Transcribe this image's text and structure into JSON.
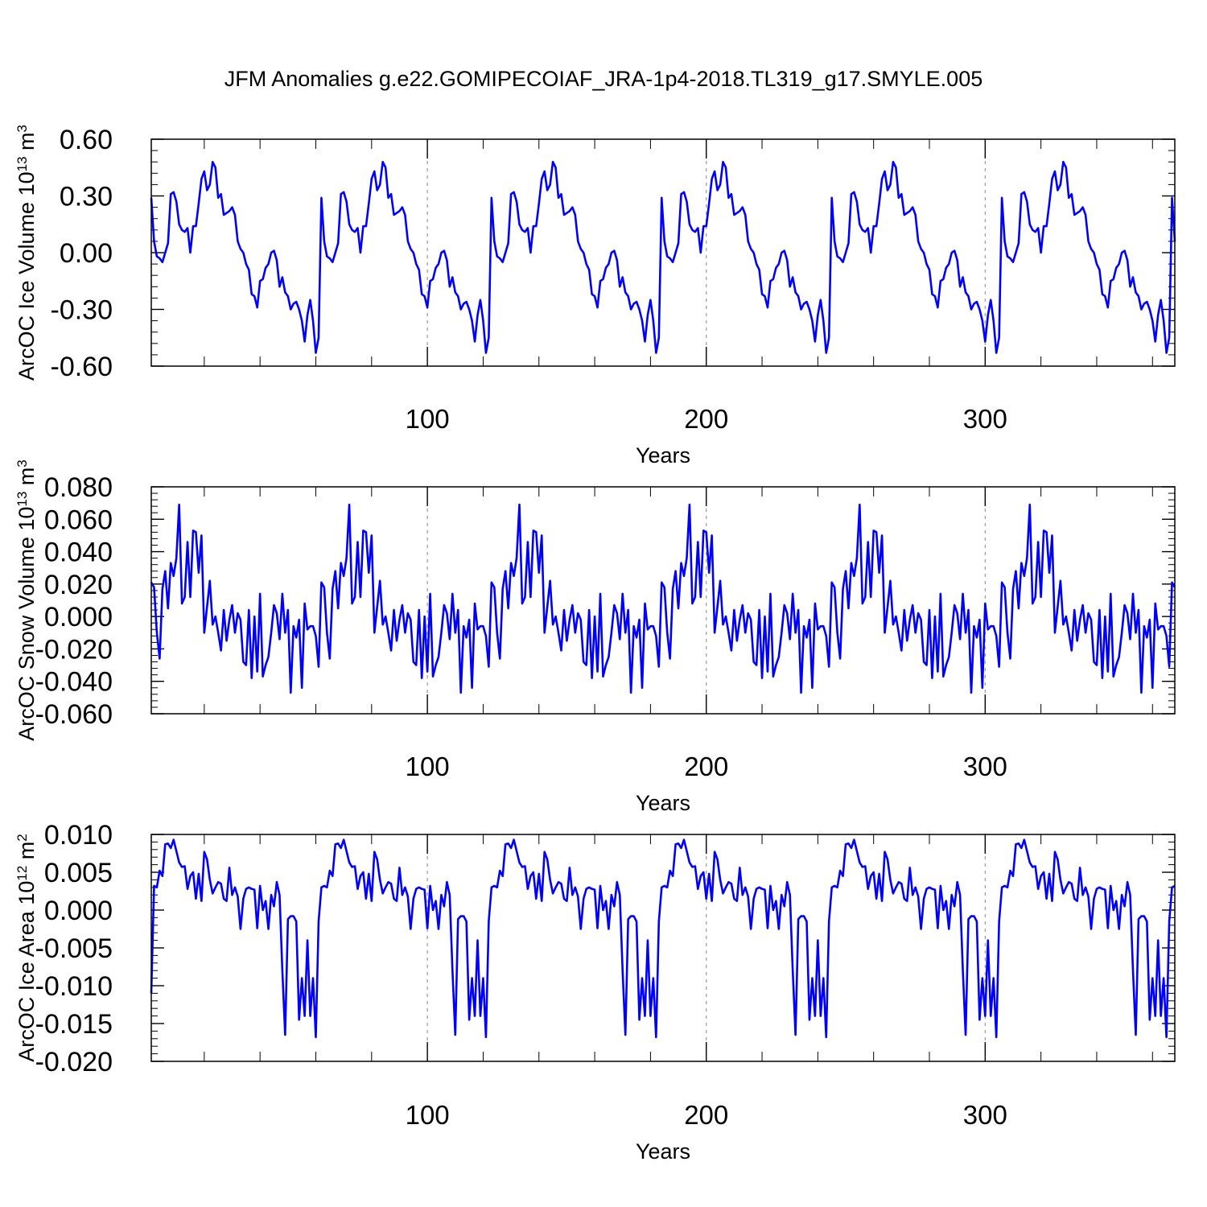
{
  "figure_title": "JFM Anomalies g.e22.GOMIPECOIAF_JRA-1p4-2018.TL319_g17.SMYLE.005",
  "colors": {
    "line": "#0000ff",
    "axis": "#000000",
    "refline": "#999999"
  },
  "chart_data": [
    {
      "type": "line",
      "name": "ice-volume",
      "ylabel_main": "ArcOC Ice Volume 10",
      "ylabel_exp": "13",
      "ylabel_unit": " m",
      "ylabel_unit_exp": "3",
      "xlabel": "Years",
      "xlim": [
        1,
        368
      ],
      "ylim": [
        -0.6,
        0.6
      ],
      "xticks": [
        100,
        200,
        300
      ],
      "xtick_labels": [
        "100",
        "200",
        "300"
      ],
      "yticks": [
        -0.6,
        -0.3,
        0.0,
        0.3,
        0.6
      ],
      "ytick_labels": [
        "-0.60",
        "-0.30",
        "0.00",
        "0.30",
        "0.60"
      ],
      "minor_ystep": 0.06,
      "minor_xstep": 20,
      "ref_lines_x": [
        100,
        200,
        300
      ],
      "cycle_start": 1,
      "cycle_length": 61,
      "series": [
        {
          "name": "Ice Volume anomaly",
          "cycle_values": [
            0.29,
            0.06,
            -0.02,
            -0.03,
            -0.05,
            0.0,
            0.05,
            0.31,
            0.32,
            0.27,
            0.15,
            0.12,
            0.11,
            0.13,
            0.0,
            0.14,
            0.14,
            0.26,
            0.39,
            0.43,
            0.33,
            0.36,
            0.48,
            0.45,
            0.29,
            0.31,
            0.2,
            0.21,
            0.22,
            0.24,
            0.2,
            0.06,
            0.02,
            0.0,
            -0.06,
            -0.09,
            -0.22,
            -0.23,
            -0.29,
            -0.15,
            -0.14,
            -0.08,
            -0.06,
            0.0,
            0.01,
            -0.04,
            -0.18,
            -0.13,
            -0.21,
            -0.23,
            -0.3,
            -0.27,
            -0.26,
            -0.3,
            -0.36,
            -0.47,
            -0.33,
            -0.25,
            -0.36,
            -0.53,
            -0.45
          ]
        }
      ]
    },
    {
      "type": "line",
      "name": "snow-volume",
      "ylabel_main": "ArcOC Snow Volume 10",
      "ylabel_exp": "13",
      "ylabel_unit": " m",
      "ylabel_unit_exp": "3",
      "xlabel": "Years",
      "xlim": [
        1,
        368
      ],
      "ylim": [
        -0.06,
        0.08
      ],
      "xticks": [
        100,
        200,
        300
      ],
      "xtick_labels": [
        "100",
        "200",
        "300"
      ],
      "yticks": [
        -0.06,
        -0.04,
        -0.02,
        0.0,
        0.02,
        0.04,
        0.06,
        0.08
      ],
      "ytick_labels": [
        "-0.060",
        "-0.040",
        "-0.020",
        "0.000",
        "0.020",
        "0.040",
        "0.060",
        "0.080"
      ],
      "minor_ystep": 0.004,
      "minor_xstep": 20,
      "ref_lines_x": [
        100,
        200,
        300
      ],
      "cycle_start": 1,
      "cycle_length": 61,
      "series": [
        {
          "name": "Snow Volume anomaly",
          "cycle_values": [
            0.021,
            0.018,
            -0.01,
            -0.026,
            0.017,
            0.028,
            0.005,
            0.033,
            0.025,
            0.036,
            0.069,
            0.008,
            0.012,
            0.046,
            0.012,
            0.053,
            0.052,
            0.027,
            0.05,
            -0.01,
            0.006,
            0.022,
            -0.005,
            0.0,
            -0.01,
            -0.021,
            0.004,
            -0.015,
            -0.002,
            0.007,
            -0.01,
            0.002,
            -0.002,
            -0.028,
            -0.03,
            0.004,
            -0.038,
            0.0,
            -0.034,
            0.014,
            -0.037,
            -0.03,
            -0.025,
            -0.01,
            0.007,
            0.002,
            -0.014,
            0.014,
            -0.01,
            0.004,
            -0.047,
            -0.006,
            -0.013,
            -0.002,
            -0.044,
            0.008,
            -0.008,
            -0.006,
            -0.006,
            -0.012,
            -0.031
          ]
        }
      ]
    },
    {
      "type": "line",
      "name": "ice-area",
      "ylabel_main": "ArcOC Ice Area 10",
      "ylabel_exp": "12",
      "ylabel_unit": " m",
      "ylabel_unit_exp": "2",
      "xlabel": "Years",
      "xlim": [
        1,
        368
      ],
      "ylim": [
        -0.02,
        0.01
      ],
      "xticks": [
        100,
        200,
        300
      ],
      "xtick_labels": [
        "100",
        "200",
        "300"
      ],
      "yticks": [
        -0.02,
        -0.015,
        -0.01,
        -0.005,
        0.0,
        0.005,
        0.01
      ],
      "ytick_labels": [
        "-0.020",
        "-0.015",
        "-0.010",
        "-0.005",
        "0.000",
        "0.005",
        "0.010"
      ],
      "minor_ystep": 0.001,
      "minor_xstep": 20,
      "ref_lines_x": [
        100,
        200,
        300
      ],
      "cycle_start": 2,
      "cycle_length": 61,
      "series": [
        {
          "name": "Ice Area anomaly",
          "first_value": -0.011,
          "cycle_values": [
            0.0032,
            0.003,
            0.0052,
            0.0045,
            0.0087,
            0.0088,
            0.0082,
            0.0093,
            0.0078,
            0.0063,
            0.0057,
            0.0058,
            0.0028,
            0.0045,
            0.005,
            0.0015,
            0.0048,
            0.0012,
            0.0077,
            0.0067,
            0.004,
            0.0022,
            0.003,
            0.0037,
            0.0035,
            0.0015,
            0.0012,
            0.0056,
            0.002,
            0.003,
            0.0018,
            -0.0025,
            0.0015,
            0.0028,
            0.003,
            0.0028,
            0.0027,
            -0.0024,
            0.0032,
            0.0,
            0.0012,
            -0.0025,
            0.002,
            0.0005,
            0.0037,
            0.002,
            -0.008,
            -0.0165,
            -0.0012,
            -0.0008,
            -0.0008,
            -0.0015,
            -0.0145,
            -0.009,
            -0.014,
            -0.004,
            -0.014,
            -0.009,
            -0.0168,
            -0.0015,
            0.003
          ]
        }
      ]
    }
  ]
}
